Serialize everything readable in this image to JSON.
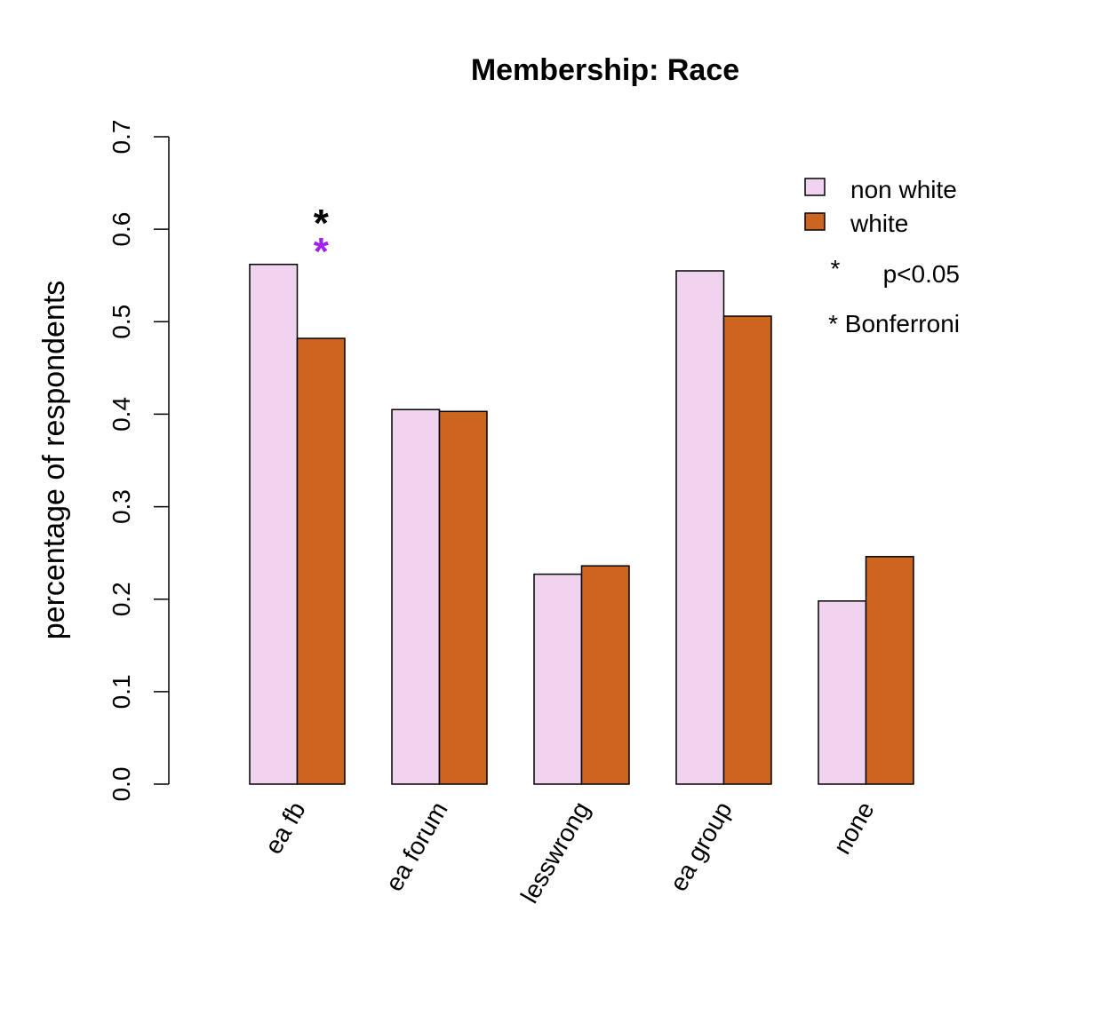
{
  "chart_data": {
    "type": "bar",
    "title": "Membership: Race",
    "xlabel": "",
    "ylabel": "percentage of respondents",
    "ylim": [
      0,
      0.7
    ],
    "yticks": [
      "0.0",
      "0.1",
      "0.2",
      "0.3",
      "0.4",
      "0.5",
      "0.6",
      "0.7"
    ],
    "categories": [
      "ea fb",
      "ea forum",
      "lesswrong",
      "ea group",
      "none"
    ],
    "series": [
      {
        "name": "non white",
        "color": "#f0d3ee",
        "values": [
          0.562,
          0.405,
          0.227,
          0.555,
          0.198
        ]
      },
      {
        "name": "white",
        "color": "#cc651f",
        "values": [
          0.482,
          0.403,
          0.236,
          0.506,
          0.246
        ]
      }
    ],
    "significance": [
      {
        "category": "ea fb",
        "p_lt_005": true,
        "bonferroni": true
      }
    ],
    "legend": {
      "placement": "top-right",
      "p_label": "p<0.05",
      "p_symbol": "*",
      "p_color": "#a020f0",
      "bonferroni_label": "* Bonferroni",
      "bonferroni_symbol": "*",
      "bonferroni_color": "#000000"
    }
  }
}
